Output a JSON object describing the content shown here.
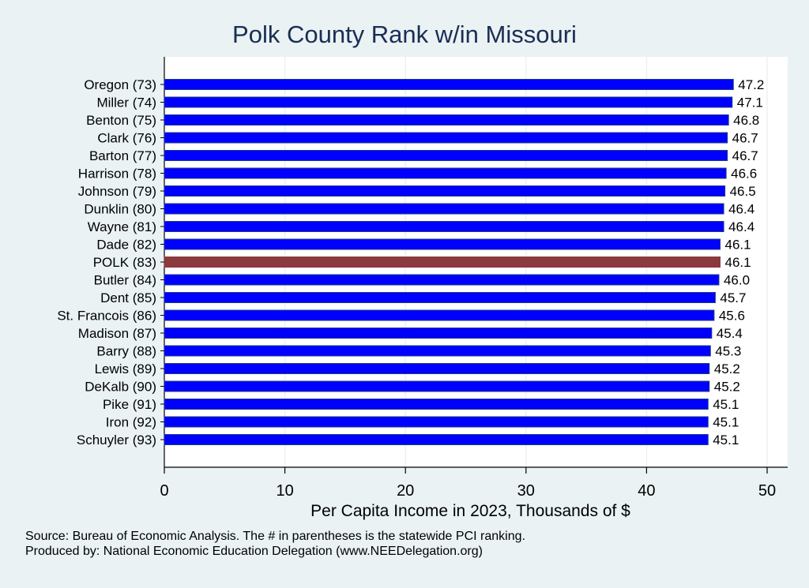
{
  "chart_data": {
    "type": "bar",
    "orientation": "horizontal",
    "title": "Polk County Rank w/in Missouri",
    "xlabel": "Per Capita Income in 2023, Thousands of $",
    "ylabel": "",
    "xlim": [
      0,
      51.5
    ],
    "xticks": [
      0,
      10,
      20,
      30,
      40,
      50
    ],
    "grid": "vertical",
    "categories": [
      "Oregon (73)",
      "Miller (74)",
      "Benton (75)",
      "Clark (76)",
      "Barton (77)",
      "Harrison (78)",
      "Johnson (79)",
      "Dunklin (80)",
      "Wayne (81)",
      "Dade (82)",
      "POLK (83)",
      "Butler (84)",
      "Dent (85)",
      "St. Francois (86)",
      "Madison (87)",
      "Barry (88)",
      "Lewis (89)",
      "DeKalb (90)",
      "Pike (91)",
      "Iron (92)",
      "Schuyler (93)"
    ],
    "values": [
      47.2,
      47.1,
      46.8,
      46.7,
      46.7,
      46.6,
      46.5,
      46.4,
      46.4,
      46.1,
      46.1,
      46.0,
      45.7,
      45.6,
      45.4,
      45.3,
      45.2,
      45.2,
      45.1,
      45.1,
      45.1
    ],
    "value_labels": [
      "47.2",
      "47.1",
      "46.8",
      "46.7",
      "46.7",
      "46.6",
      "46.5",
      "46.4",
      "46.4",
      "46.1",
      "46.1",
      "46.0",
      "45.7",
      "45.6",
      "45.4",
      "45.3",
      "45.2",
      "45.2",
      "45.1",
      "45.1",
      "45.1"
    ],
    "highlight_index": 10,
    "colors": {
      "bar": "#0000ff",
      "bar_border": "#1a3a8a",
      "highlight": "#8b3a3e",
      "background": "#eaf2f3",
      "plot": "#ffffff",
      "title": "#1a2e55"
    }
  },
  "notes": {
    "source": "Source: Bureau of Economic Analysis. The # in parentheses is the statewide PCI ranking.",
    "produced": "Produced by: National Economic Education Delegation (www.NEEDelegation.org)"
  }
}
